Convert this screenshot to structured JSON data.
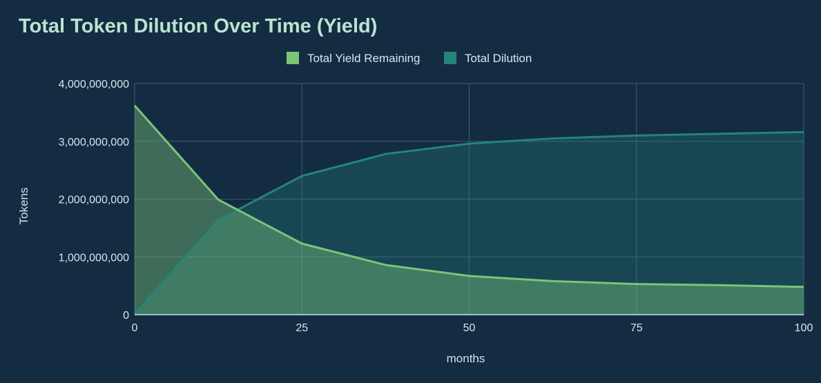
{
  "colors": {
    "background": "#132c42",
    "grid": "#3d5f6e",
    "yield": "#7cc47a",
    "dilution": "#26847a",
    "title": "#b9e3cf"
  },
  "chart_data": {
    "type": "area",
    "title": "Total Token Dilution Over Time (Yield)",
    "xlabel": "months",
    "ylabel": "Tokens",
    "xlim": [
      0,
      100
    ],
    "ylim": [
      0,
      4000000000
    ],
    "x_ticks": [
      "0",
      "25",
      "50",
      "75",
      "100"
    ],
    "y_ticks": [
      "0",
      "1,000,000,000",
      "2,000,000,000",
      "3,000,000,000",
      "4,000,000,000"
    ],
    "grid": true,
    "legend_position": "top",
    "series": [
      {
        "name": "Total Yield Remaining",
        "color": "#7cc47a",
        "points": [
          [
            0,
            3620000000
          ],
          [
            12.5,
            1990000000
          ],
          [
            25,
            1230000000
          ],
          [
            37.5,
            860000000
          ],
          [
            50,
            670000000
          ],
          [
            62.5,
            580000000
          ],
          [
            75,
            530000000
          ],
          [
            87.5,
            510000000
          ],
          [
            100,
            480000000
          ]
        ]
      },
      {
        "name": "Total Dilution",
        "color": "#26847a",
        "points": [
          [
            0,
            10000000
          ],
          [
            12.5,
            1640000000
          ],
          [
            25,
            2400000000
          ],
          [
            37.5,
            2780000000
          ],
          [
            50,
            2960000000
          ],
          [
            62.5,
            3050000000
          ],
          [
            75,
            3100000000
          ],
          [
            87.5,
            3130000000
          ],
          [
            100,
            3160000000
          ]
        ]
      }
    ]
  }
}
